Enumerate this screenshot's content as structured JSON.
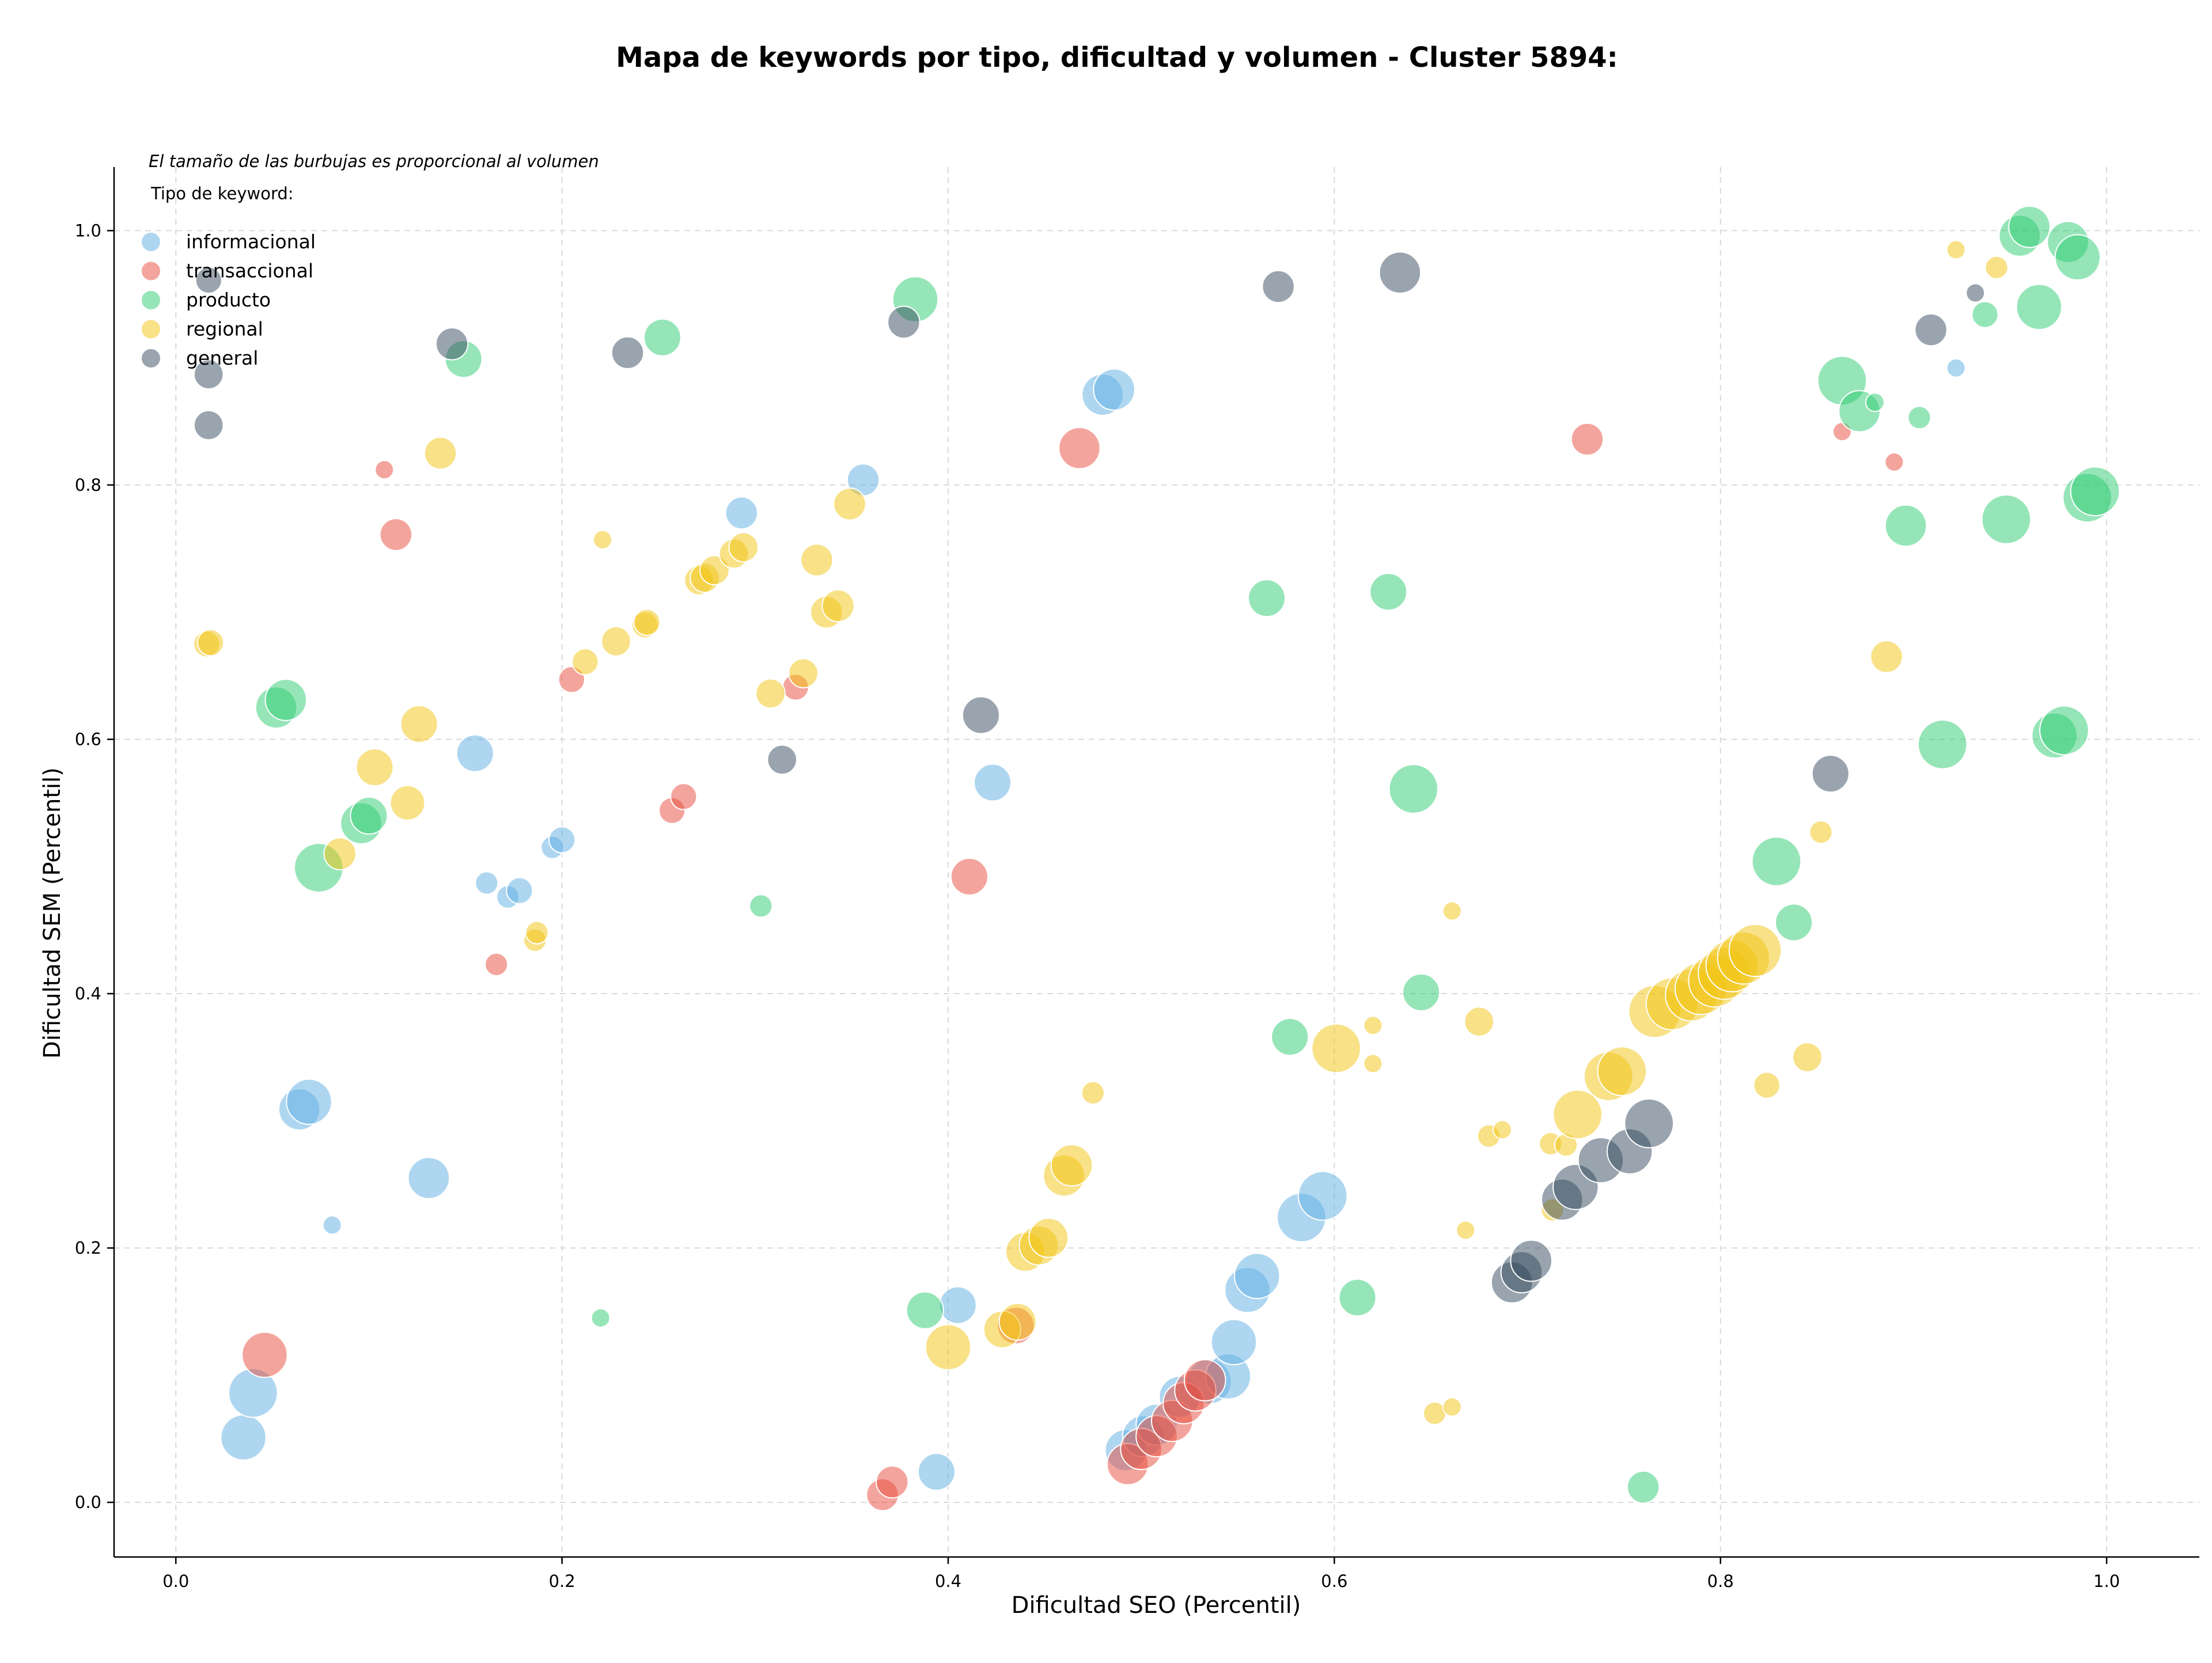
{
  "colors": {
    "informacional": "#5dade2",
    "transaccional": "#e74c3c",
    "producto": "#2ecc71",
    "regional": "#f1c40f",
    "general": "#34495e",
    "axis": "#000000",
    "grid": "#d9d9d9",
    "bubble_edge": "#ffffff"
  },
  "chart_data": {
    "type": "scatter",
    "title": "Mapa de keywords por tipo, dificultad y volumen - Cluster 5894:",
    "subtitle": "",
    "annotation": "El tamaño de las burbujas es proporcional al volumen",
    "xlabel": "Dificultad SEO (Percentil)",
    "ylabel": "Dificultad SEM (Percentil)",
    "xlim": [
      -0.032,
      1.048
    ],
    "ylim": [
      -0.043,
      1.05
    ],
    "xticks": [
      0.0,
      0.2,
      0.4,
      0.6,
      0.8,
      1.0
    ],
    "xtick_labels": [
      "0.0",
      "0.2",
      "0.4",
      "0.6",
      "0.8",
      "1.0"
    ],
    "yticks": [
      0.0,
      0.2,
      0.4,
      0.6,
      0.8,
      1.0
    ],
    "ytick_labels": [
      "0.0",
      "0.2",
      "0.4",
      "0.6",
      "0.8",
      "1.0"
    ],
    "grid": true,
    "legend_title": "Tipo de keyword:",
    "legend_position": "top-left",
    "size_encoding": "relative volume (1–10)",
    "series": [
      {
        "name": "informacional",
        "x": [
          0.035,
          0.04,
          0.064,
          0.069,
          0.081,
          0.131,
          0.155,
          0.161,
          0.172,
          0.178,
          0.195,
          0.2,
          0.293,
          0.356,
          0.394,
          0.405,
          0.423,
          0.48,
          0.486,
          0.492,
          0.501,
          0.508,
          0.52,
          0.535,
          0.545,
          0.548,
          0.555,
          0.56,
          0.583,
          0.594,
          0.922
        ],
        "y": [
          0.051,
          0.086,
          0.309,
          0.315,
          0.218,
          0.255,
          0.589,
          0.487,
          0.476,
          0.481,
          0.515,
          0.521,
          0.778,
          0.804,
          0.024,
          0.155,
          0.566,
          0.871,
          0.875,
          0.041,
          0.052,
          0.061,
          0.083,
          0.095,
          0.099,
          0.126,
          0.167,
          0.178,
          0.224,
          0.241,
          0.892
        ],
        "sizes": [
          6,
          7,
          5,
          6,
          1,
          5,
          4,
          1.5,
          1.5,
          2,
          1.5,
          2,
          3,
          3,
          4,
          4,
          4,
          5,
          5,
          5,
          5,
          5,
          5,
          6,
          6,
          6,
          6,
          6,
          7,
          7,
          1
        ]
      },
      {
        "name": "transaccional",
        "x": [
          0.046,
          0.108,
          0.114,
          0.166,
          0.205,
          0.257,
          0.263,
          0.321,
          0.366,
          0.371,
          0.411,
          0.435,
          0.468,
          0.493,
          0.5,
          0.508,
          0.516,
          0.522,
          0.528,
          0.533,
          0.731,
          0.863,
          0.89
        ],
        "y": [
          0.116,
          0.812,
          0.761,
          0.423,
          0.647,
          0.544,
          0.555,
          0.641,
          0.006,
          0.016,
          0.492,
          0.139,
          0.829,
          0.03,
          0.042,
          0.052,
          0.064,
          0.078,
          0.088,
          0.096,
          0.836,
          0.842,
          0.818
        ],
        "sizes": [
          6,
          1,
          3,
          1.5,
          2,
          2,
          2,
          2,
          3,
          3,
          4,
          4,
          5,
          5,
          5,
          5,
          5,
          5,
          5,
          5,
          3,
          1,
          1
        ]
      },
      {
        "name": "producto",
        "x": [
          0.052,
          0.057,
          0.074,
          0.096,
          0.1,
          0.149,
          0.252,
          0.22,
          0.303,
          0.383,
          0.388,
          0.565,
          0.577,
          0.612,
          0.628,
          0.641,
          0.645,
          0.76,
          0.829,
          0.838,
          0.863,
          0.872,
          0.88,
          0.896,
          0.903,
          0.915,
          0.937,
          0.948,
          0.955,
          0.96,
          0.965,
          0.973,
          0.978,
          0.98,
          0.985,
          0.99,
          0.994
        ],
        "y": [
          0.625,
          0.631,
          0.499,
          0.534,
          0.54,
          0.899,
          0.916,
          0.145,
          0.469,
          0.946,
          0.151,
          0.711,
          0.366,
          0.161,
          0.716,
          0.561,
          0.401,
          0.012,
          0.504,
          0.456,
          0.882,
          0.858,
          0.865,
          0.768,
          0.853,
          0.596,
          0.934,
          0.773,
          0.996,
          1.003,
          0.94,
          0.603,
          0.607,
          0.991,
          0.979,
          0.79,
          0.795
        ],
        "sizes": [
          5,
          5,
          7,
          5,
          4,
          4,
          4,
          1,
          1.5,
          6,
          4,
          4,
          4,
          4,
          4,
          7,
          4,
          3,
          7,
          4,
          7,
          5,
          1,
          5,
          1.5,
          7,
          2,
          7,
          5,
          5,
          6,
          6,
          7,
          5,
          6,
          7,
          7
        ]
      },
      {
        "name": "regional",
        "x": [
          0.016,
          0.018,
          0.085,
          0.103,
          0.12,
          0.126,
          0.137,
          0.186,
          0.187,
          0.212,
          0.221,
          0.228,
          0.243,
          0.244,
          0.271,
          0.274,
          0.279,
          0.289,
          0.294,
          0.308,
          0.325,
          0.332,
          0.337,
          0.343,
          0.349,
          0.4,
          0.428,
          0.436,
          0.44,
          0.447,
          0.452,
          0.46,
          0.464,
          0.475,
          0.601,
          0.62,
          0.62,
          0.652,
          0.661,
          0.661,
          0.668,
          0.675,
          0.68,
          0.687,
          0.712,
          0.713,
          0.72,
          0.726,
          0.742,
          0.749,
          0.766,
          0.775,
          0.785,
          0.79,
          0.797,
          0.802,
          0.806,
          0.812,
          0.818,
          0.824,
          0.845,
          0.852,
          0.886,
          0.922,
          0.943
        ],
        "y": [
          0.675,
          0.676,
          0.51,
          0.578,
          0.55,
          0.612,
          0.825,
          0.442,
          0.448,
          0.661,
          0.757,
          0.677,
          0.69,
          0.692,
          0.725,
          0.727,
          0.733,
          0.746,
          0.751,
          0.636,
          0.652,
          0.741,
          0.7,
          0.705,
          0.785,
          0.122,
          0.136,
          0.142,
          0.197,
          0.202,
          0.208,
          0.257,
          0.265,
          0.322,
          0.357,
          0.345,
          0.375,
          0.07,
          0.075,
          0.465,
          0.214,
          0.378,
          0.288,
          0.293,
          0.282,
          0.23,
          0.281,
          0.305,
          0.335,
          0.339,
          0.386,
          0.392,
          0.399,
          0.404,
          0.41,
          0.416,
          0.422,
          0.428,
          0.434,
          0.328,
          0.35,
          0.527,
          0.665,
          0.985,
          0.971
        ],
        "sizes": [
          2,
          2,
          3,
          4,
          3.5,
          4,
          3,
          1.5,
          1.5,
          2,
          1,
          2.5,
          2,
          2,
          2.5,
          2.5,
          2.5,
          2.5,
          2.5,
          2.5,
          2.5,
          3,
          3,
          3,
          3,
          6,
          4,
          4,
          4.5,
          4.5,
          4.5,
          5,
          5,
          1.5,
          7,
          1,
          1,
          1.5,
          1,
          1,
          1,
          2.5,
          1.5,
          1,
          1.5,
          1.5,
          1.5,
          7,
          7,
          7,
          8,
          8,
          8,
          8,
          8,
          8,
          8,
          8,
          8,
          2,
          2.5,
          1.5,
          3,
          1,
          1.5
        ]
      },
      {
        "name": "general",
        "x": [
          0.017,
          0.017,
          0.017,
          0.143,
          0.234,
          0.314,
          0.377,
          0.417,
          0.571,
          0.634,
          0.692,
          0.697,
          0.702,
          0.718,
          0.725,
          0.738,
          0.753,
          0.763,
          0.857,
          0.909,
          0.932
        ],
        "y": [
          0.961,
          0.887,
          0.847,
          0.911,
          0.904,
          0.584,
          0.928,
          0.619,
          0.956,
          0.967,
          0.173,
          0.181,
          0.19,
          0.238,
          0.248,
          0.269,
          0.276,
          0.298,
          0.573,
          0.922,
          0.951
        ],
        "sizes": [
          2,
          2.5,
          2.5,
          3,
          3,
          2.5,
          3,
          4,
          3,
          5,
          5,
          5,
          5,
          5,
          6,
          6,
          6,
          7,
          4,
          3,
          1
        ]
      }
    ]
  }
}
